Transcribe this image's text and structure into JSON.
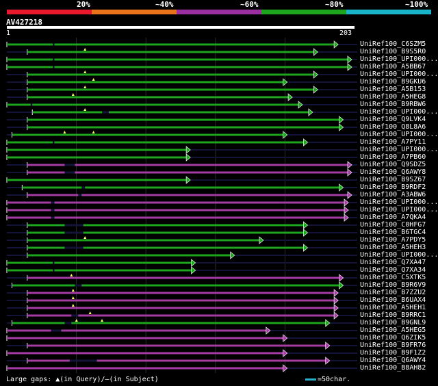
{
  "scale": {
    "labels": [
      "20%",
      "~40%",
      "~60%",
      "~80%",
      "~100%"
    ],
    "colors": [
      "#e8192c",
      "#e8731a",
      "#9b2fa0",
      "#1ea51e",
      "#18b4c8"
    ]
  },
  "query": {
    "title": "AV427218",
    "start": "1",
    "end": "203"
  },
  "legend": {
    "gaps": "Large gaps: ▲(in Query)/—(in Subject)",
    "unit": "=50char."
  },
  "hits": [
    {
      "label": "UniRef100_C6SZM5",
      "color": "green",
      "start": 0,
      "end": 195,
      "gaps": [
        [
          27,
          28
        ]
      ]
    },
    {
      "label": "UniRef100_B9S5R0",
      "color": "green",
      "start": 12,
      "end": 183,
      "tri": [
        46
      ]
    },
    {
      "label": "UniRef100_UPI000...",
      "color": "green",
      "start": 0,
      "end": 203,
      "gaps": [
        [
          27,
          28
        ]
      ]
    },
    {
      "label": "UniRef100_A5BB67",
      "color": "green",
      "start": 0,
      "end": 203,
      "gaps": [
        [
          27,
          28
        ]
      ]
    },
    {
      "label": "UniRef100_UPI000...",
      "color": "green",
      "start": 12,
      "end": 183,
      "tri": [
        46
      ]
    },
    {
      "label": "UniRef100_B9GKU6",
      "color": "green",
      "start": 12,
      "end": 165,
      "tri": [
        51
      ]
    },
    {
      "label": "UniRef100_A5B153",
      "color": "green",
      "start": 12,
      "end": 183,
      "tri": [
        46
      ]
    },
    {
      "label": "UniRef100_A5HEG8",
      "color": "green",
      "start": 12,
      "end": 168,
      "tri": [
        39
      ]
    },
    {
      "label": "UniRef100_B9RBW6",
      "color": "green",
      "start": 0,
      "end": 174,
      "gaps": [
        [
          14,
          15
        ]
      ]
    },
    {
      "label": "UniRef100_UPI000...",
      "color": "green",
      "start": 15,
      "end": 180,
      "tri": [
        46
      ],
      "gaps": [
        [
          56,
          60
        ]
      ]
    },
    {
      "label": "UniRef100_Q9LVK4",
      "color": "green",
      "start": 12,
      "end": 198
    },
    {
      "label": "UniRef100_Q8L8A6",
      "color": "green",
      "start": 12,
      "end": 198
    },
    {
      "label": "UniRef100_UPI000...",
      "color": "green",
      "start": 3,
      "end": 165,
      "tri": [
        34,
        51
      ]
    },
    {
      "label": "UniRef100_A7PY11",
      "color": "green",
      "start": 0,
      "end": 177,
      "gaps": [
        [
          27,
          28
        ]
      ]
    },
    {
      "label": "UniRef100_UPI000...",
      "color": "green",
      "start": 0,
      "end": 108
    },
    {
      "label": "UniRef100_A7PB60",
      "color": "green",
      "start": 0,
      "end": 108
    },
    {
      "label": "UniRef100_Q9SDZ5",
      "color": "purple",
      "start": 12,
      "end": 203,
      "gaps": [
        [
          34,
          40
        ]
      ]
    },
    {
      "label": "UniRef100_Q6AWY8",
      "color": "purple",
      "start": 12,
      "end": 203,
      "gaps": [
        [
          34,
          40
        ]
      ]
    },
    {
      "label": "UniRef100_B9SZ67",
      "color": "green",
      "start": 0,
      "end": 108
    },
    {
      "label": "UniRef100_B9RDF2",
      "color": "green",
      "start": 9,
      "end": 198,
      "gaps": [
        [
          44,
          46
        ]
      ]
    },
    {
      "label": "UniRef100_A3ABW6",
      "color": "purple",
      "start": 12,
      "end": 203,
      "gaps": [
        [
          42,
          44
        ]
      ]
    },
    {
      "label": "UniRef100_UPI000...",
      "color": "purple",
      "start": 0,
      "end": 201,
      "gaps": [
        [
          26,
          28
        ]
      ]
    },
    {
      "label": "UniRef100_UPI000...",
      "color": "purple",
      "start": 0,
      "end": 201,
      "gaps": [
        [
          26,
          28
        ]
      ]
    },
    {
      "label": "UniRef100_A7QKA4",
      "color": "purple",
      "start": 0,
      "end": 201,
      "gaps": [
        [
          26,
          28
        ]
      ]
    },
    {
      "label": "UniRef100_C0HFG7",
      "color": "green",
      "start": 12,
      "end": 177,
      "gaps": [
        [
          34,
          45
        ]
      ]
    },
    {
      "label": "UniRef100_B6TGC4",
      "color": "green",
      "start": 12,
      "end": 177,
      "gaps": [
        [
          34,
          45
        ]
      ]
    },
    {
      "label": "UniRef100_A7PDY5",
      "color": "green",
      "start": 12,
      "end": 151,
      "tri": [
        46
      ]
    },
    {
      "label": "UniRef100_A5HEH3",
      "color": "green",
      "start": 12,
      "end": 177,
      "gaps": [
        [
          34,
          45
        ]
      ]
    },
    {
      "label": "UniRef100_UPI000...",
      "color": "green",
      "start": 12,
      "end": 134
    },
    {
      "label": "UniRef100_Q7XA47",
      "color": "green",
      "start": 0,
      "end": 111,
      "gaps": [
        [
          27,
          28
        ]
      ]
    },
    {
      "label": "UniRef100_Q7XA34",
      "color": "green",
      "start": 0,
      "end": 111,
      "gaps": [
        [
          27,
          28
        ]
      ]
    },
    {
      "label": "UniRef100_C5XTK5",
      "color": "purple",
      "start": 12,
      "end": 198,
      "tri": [
        38
      ]
    },
    {
      "label": "UniRef100_B9R6V9",
      "color": "green",
      "start": 3,
      "end": 198,
      "gaps": [
        [
          40,
          44
        ]
      ]
    },
    {
      "label": "UniRef100_B7ZZU2",
      "color": "purple",
      "start": 12,
      "end": 195,
      "tri": [
        39
      ]
    },
    {
      "label": "UniRef100_B6UAX4",
      "color": "purple",
      "start": 12,
      "end": 195,
      "tri": [
        39
      ]
    },
    {
      "label": "UniRef100_A5HEH1",
      "color": "purple",
      "start": 12,
      "end": 195,
      "tri": [
        39
      ]
    },
    {
      "label": "UniRef100_B9RRC1",
      "color": "purple",
      "start": 12,
      "end": 195,
      "tri": [
        49
      ],
      "gaps": [
        [
          38,
          42
        ]
      ]
    },
    {
      "label": "UniRef100_B9GNL9",
      "color": "green",
      "start": 3,
      "end": 190,
      "tri": [
        41,
        56
      ],
      "gaps": [
        [
          34,
          38
        ]
      ]
    },
    {
      "label": "UniRef100_A5HEG5",
      "color": "purple",
      "start": 0,
      "end": 155,
      "gaps": [
        [
          26,
          32
        ]
      ]
    },
    {
      "label": "UniRef100_Q6ZIK5",
      "color": "purple",
      "start": 0,
      "end": 165
    },
    {
      "label": "UniRef100_B9FR76",
      "color": "purple",
      "start": 12,
      "end": 190
    },
    {
      "label": "UniRef100_B9F1Z2",
      "color": "purple",
      "start": 0,
      "end": 165
    },
    {
      "label": "UniRef100_Q6AWY4",
      "color": "purple",
      "start": 12,
      "end": 190,
      "gaps": [
        [
          37,
          53
        ]
      ]
    },
    {
      "label": "UniRef100_B8AH82",
      "color": "purple",
      "start": 0,
      "end": 165
    }
  ]
}
